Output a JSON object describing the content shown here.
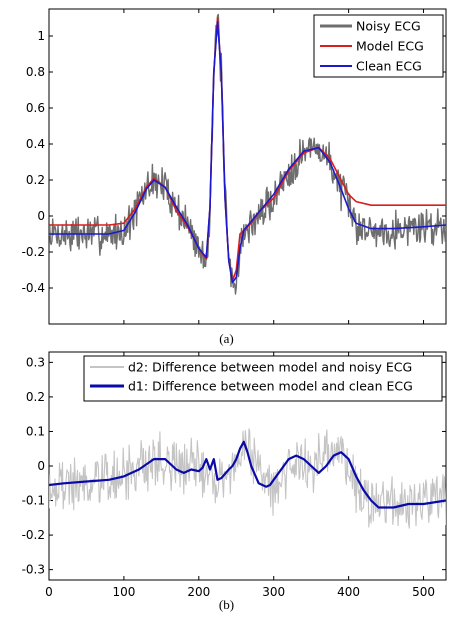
{
  "chart_data": [
    {
      "panel_label": "(a)",
      "type": "line",
      "title": "",
      "xlabel": "",
      "ylabel": "",
      "xlim": [
        0,
        530
      ],
      "ylim": [
        -0.6,
        1.15
      ],
      "x_ticks": [
        0,
        100,
        200,
        300,
        400,
        500
      ],
      "x_tick_labels_shown": false,
      "y_ticks": [
        -0.4,
        -0.2,
        0,
        0.2,
        0.4,
        0.6,
        0.8,
        1
      ],
      "y_tick_labels": [
        "-0.4",
        "-0.2",
        "0",
        "0.2",
        "0.4",
        "0.6",
        "0.8",
        "1"
      ],
      "grid": false,
      "legend_position": "top-right",
      "series": [
        {
          "name": "Noisy  ECG",
          "color": "#6e6e6e",
          "noisy": true,
          "x": [
            0,
            20,
            40,
            60,
            80,
            100,
            115,
            130,
            140,
            155,
            170,
            185,
            200,
            210,
            215,
            220,
            225,
            230,
            235,
            240,
            245,
            250,
            255,
            260,
            270,
            280,
            300,
            320,
            340,
            360,
            375,
            390,
            400,
            410,
            430,
            460,
            500,
            530
          ],
          "y": [
            -0.1,
            -0.1,
            -0.1,
            -0.1,
            -0.1,
            -0.08,
            0.02,
            0.15,
            0.2,
            0.16,
            0.05,
            -0.05,
            -0.18,
            -0.25,
            0.05,
            0.8,
            1.08,
            0.8,
            0.1,
            -0.25,
            -0.38,
            -0.34,
            -0.2,
            -0.1,
            -0.05,
            0.0,
            0.1,
            0.25,
            0.36,
            0.38,
            0.3,
            0.15,
            0.05,
            -0.05,
            -0.08,
            -0.07,
            -0.06,
            -0.05
          ]
        },
        {
          "name": "Model ECG",
          "color": "#d81f1f",
          "x": [
            0,
            20,
            40,
            60,
            80,
            100,
            115,
            130,
            140,
            155,
            170,
            185,
            200,
            210,
            215,
            220,
            225,
            230,
            235,
            240,
            245,
            250,
            255,
            260,
            270,
            280,
            300,
            320,
            340,
            360,
            375,
            390,
            400,
            410,
            430,
            460,
            500,
            530
          ],
          "y": [
            -0.05,
            -0.05,
            -0.05,
            -0.05,
            -0.05,
            -0.04,
            0.04,
            0.16,
            0.21,
            0.16,
            0.03,
            -0.06,
            -0.18,
            -0.24,
            0.05,
            0.8,
            1.1,
            0.8,
            0.1,
            -0.25,
            -0.36,
            -0.3,
            -0.1,
            -0.08,
            -0.04,
            0.02,
            0.1,
            0.25,
            0.35,
            0.38,
            0.32,
            0.2,
            0.12,
            0.08,
            0.06,
            0.06,
            0.06,
            0.06
          ]
        },
        {
          "name": "Clean  ECG",
          "color": "#1a1acc",
          "x": [
            0,
            20,
            40,
            60,
            80,
            100,
            115,
            130,
            140,
            155,
            170,
            185,
            200,
            210,
            215,
            220,
            225,
            230,
            235,
            240,
            245,
            250,
            255,
            260,
            270,
            280,
            300,
            320,
            340,
            360,
            375,
            390,
            400,
            410,
            430,
            460,
            500,
            530
          ],
          "y": [
            -0.1,
            -0.1,
            -0.1,
            -0.1,
            -0.1,
            -0.08,
            0.02,
            0.15,
            0.2,
            0.16,
            0.05,
            -0.05,
            -0.18,
            -0.23,
            0.05,
            0.8,
            1.08,
            0.8,
            0.1,
            -0.25,
            -0.37,
            -0.34,
            -0.18,
            -0.08,
            -0.03,
            0.02,
            0.12,
            0.26,
            0.36,
            0.38,
            0.3,
            0.15,
            0.04,
            -0.04,
            -0.07,
            -0.07,
            -0.06,
            -0.05
          ]
        }
      ]
    },
    {
      "panel_label": "(b)",
      "type": "line",
      "title": "",
      "xlabel": "",
      "ylabel": "",
      "xlim": [
        0,
        530
      ],
      "ylim": [
        -0.33,
        0.33
      ],
      "x_ticks": [
        0,
        100,
        200,
        300,
        400,
        500
      ],
      "x_tick_labels": [
        "0",
        "100",
        "200",
        "300",
        "400",
        "500"
      ],
      "y_ticks": [
        -0.3,
        -0.2,
        -0.1,
        0,
        0.1,
        0.2,
        0.3
      ],
      "y_tick_labels": [
        "-0.3",
        "-0.2",
        "-0.1",
        "0",
        "0.1",
        "0.2",
        "0.3"
      ],
      "grid": false,
      "legend_position": "top-right",
      "series": [
        {
          "name": "d2: Difference between model and noisy ECG",
          "color": "#c4c4c4",
          "noisy": true,
          "x": [
            0,
            50,
            100,
            140,
            170,
            190,
            200,
            210,
            215,
            220,
            230,
            245,
            260,
            275,
            295,
            315,
            330,
            350,
            370,
            390,
            410,
            430,
            460,
            490,
            530
          ],
          "y": [
            -0.06,
            -0.05,
            -0.03,
            0.02,
            0.0,
            -0.01,
            0.01,
            -0.02,
            0.02,
            -0.03,
            -0.04,
            -0.01,
            0.07,
            0.02,
            -0.06,
            -0.03,
            0.02,
            0.0,
            0.02,
            0.04,
            -0.05,
            -0.11,
            -0.12,
            -0.11,
            -0.1
          ]
        },
        {
          "name": "d1: Difference between model and clean ECG",
          "color": "#0a0aa8",
          "x": [
            0,
            20,
            50,
            80,
            100,
            120,
            140,
            155,
            170,
            180,
            190,
            200,
            205,
            210,
            215,
            220,
            225,
            230,
            240,
            245,
            250,
            255,
            260,
            265,
            270,
            280,
            290,
            295,
            300,
            310,
            320,
            330,
            340,
            350,
            360,
            370,
            380,
            390,
            400,
            410,
            420,
            430,
            440,
            460,
            480,
            500,
            530
          ],
          "y": [
            -0.055,
            -0.05,
            -0.045,
            -0.04,
            -0.03,
            -0.01,
            0.02,
            0.02,
            -0.01,
            -0.02,
            -0.01,
            -0.015,
            -0.005,
            0.02,
            -0.01,
            0.02,
            -0.04,
            -0.035,
            -0.01,
            0.0,
            0.02,
            0.05,
            0.07,
            0.04,
            0.0,
            -0.05,
            -0.06,
            -0.055,
            -0.04,
            -0.01,
            0.02,
            0.03,
            0.02,
            0.0,
            -0.02,
            0.0,
            0.03,
            0.04,
            0.02,
            -0.03,
            -0.07,
            -0.1,
            -0.12,
            -0.12,
            -0.11,
            -0.11,
            -0.1
          ]
        }
      ]
    }
  ]
}
